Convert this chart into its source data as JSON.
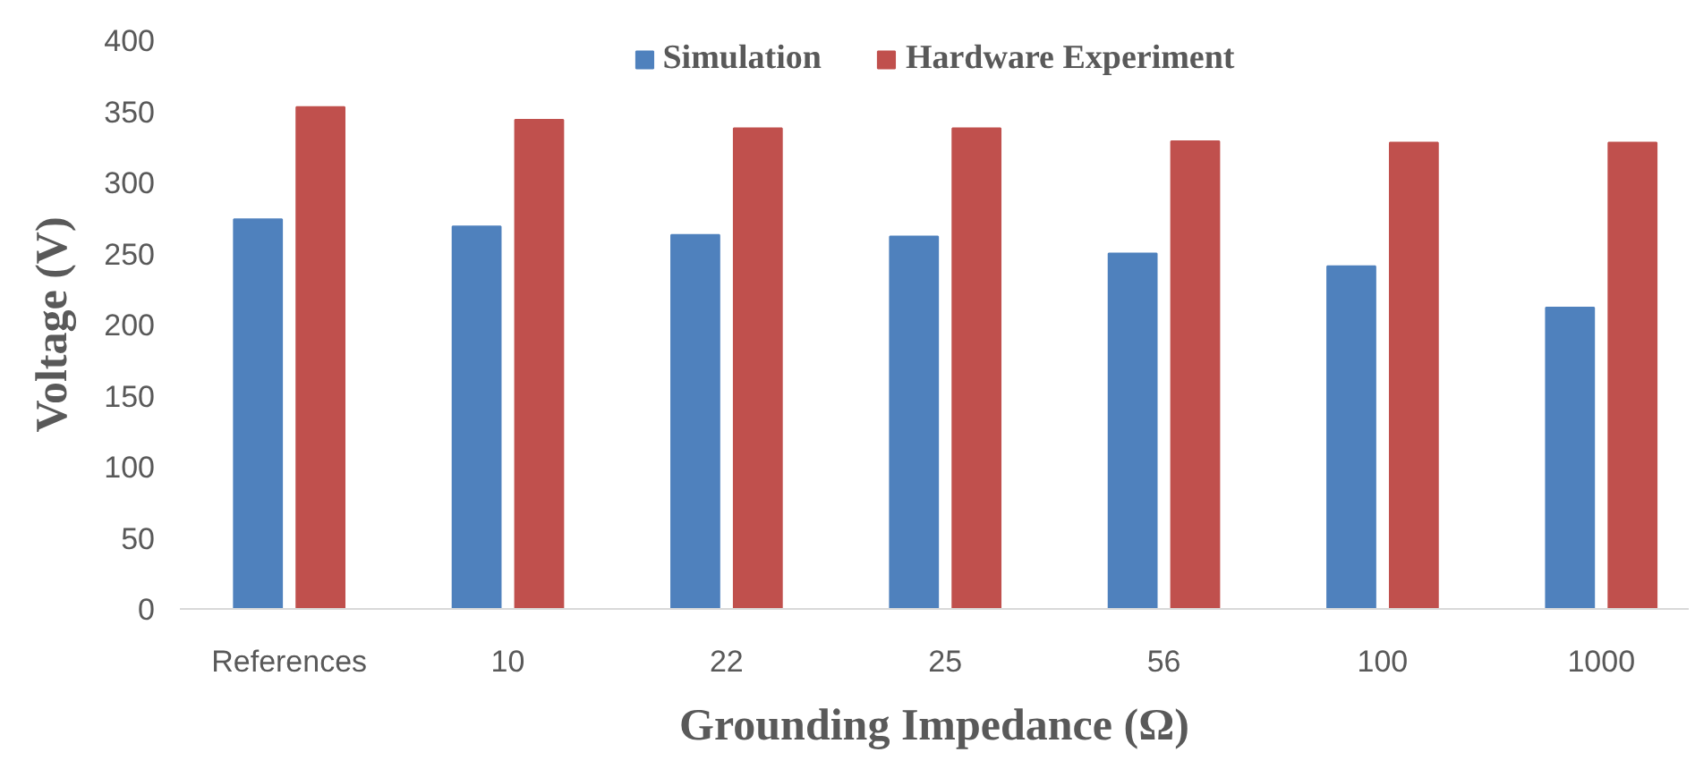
{
  "chart_data": {
    "type": "bar",
    "xlabel": "Grounding Impedance (Ω)",
    "ylabel": "Voltage (V)",
    "categories": [
      "References",
      "10",
      "22",
      "25",
      "56",
      "100",
      "1000"
    ],
    "series": [
      {
        "name": "Simulation",
        "color": "#4f81bd",
        "values": [
          274,
          269,
          263,
          262,
          250,
          241,
          212
        ]
      },
      {
        "name": "Hardware Experiment",
        "color": "#c0504d",
        "values": [
          353,
          344,
          338,
          338,
          329,
          328,
          328
        ]
      }
    ],
    "ylim": [
      0,
      400
    ],
    "yticks": [
      0,
      50,
      100,
      150,
      200,
      250,
      300,
      350,
      400
    ],
    "legend": "top"
  }
}
